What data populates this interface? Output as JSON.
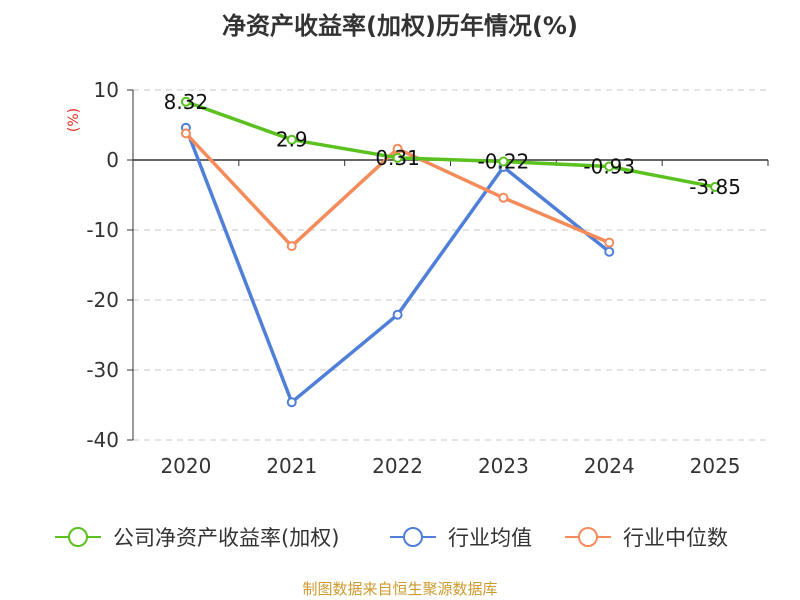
{
  "title": "净资产收益率(加权)历年情况(%)",
  "source": "制图数据来自恒生聚源数据库",
  "colors": {
    "axis": "#333333",
    "grid": "#c8c8c8",
    "series_company": "#5ac11f",
    "series_avg": "#4f7fd8",
    "series_median": "#f58b5a",
    "ylabel": "#e02b20",
    "source": "#cc9a2e"
  },
  "chart_data": {
    "type": "line",
    "title": "净资产收益率(加权)历年情况(%)",
    "xlabel": "",
    "ylabel": "(%)",
    "categories": [
      "2020",
      "2021",
      "2022",
      "2023",
      "2024",
      "2025"
    ],
    "ylim": [
      -40,
      10
    ],
    "yticks": [
      10,
      0,
      -10,
      -20,
      -30,
      -40
    ],
    "grid": true,
    "legend_position": "bottom",
    "series": [
      {
        "name": "公司净资产收益率(加权)",
        "color": "#5ac11f",
        "values": [
          8.32,
          2.9,
          0.31,
          -0.22,
          -0.93,
          -3.85
        ],
        "data_labels": [
          "8.32",
          "2.9",
          "0.31",
          "-0.22",
          "-0.93",
          "-3.85"
        ]
      },
      {
        "name": "行业均值",
        "color": "#4f7fd8",
        "values": [
          4.6,
          -34.6,
          -22.1,
          -1.0,
          -13.1,
          null
        ]
      },
      {
        "name": "行业中位数",
        "color": "#f58b5a",
        "values": [
          3.8,
          -12.3,
          1.6,
          -5.4,
          -11.8,
          null
        ]
      }
    ]
  }
}
